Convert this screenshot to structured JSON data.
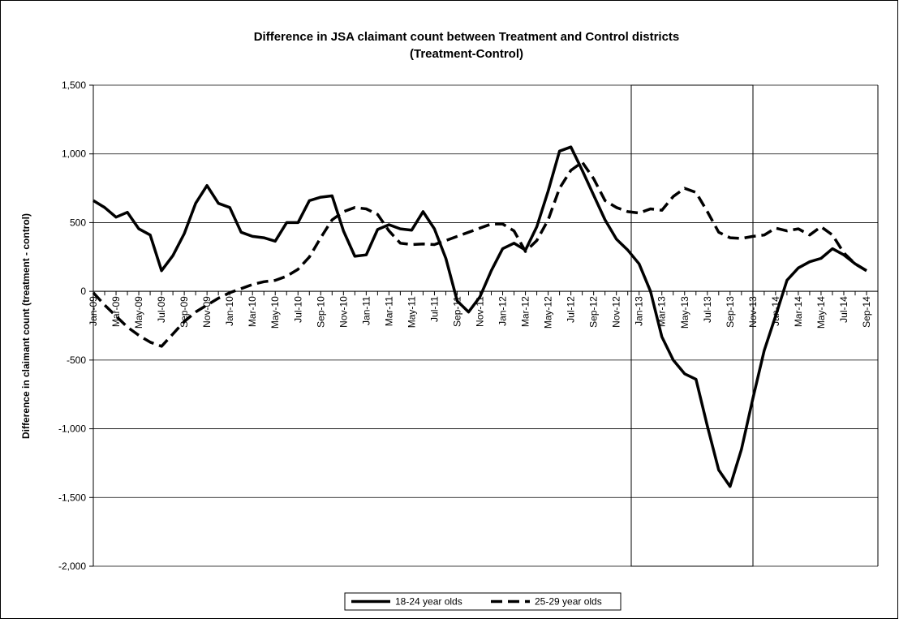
{
  "chart_data": {
    "type": "line",
    "title": "Difference in JSA claimant count between Treatment and Control districts",
    "subtitle": "(Treatment-Control)",
    "y_label": "Difference in claimant count (treatment - control)",
    "categories": [
      "Jan-09",
      null,
      "Mar-09",
      null,
      "May-09",
      null,
      "Jul-09",
      null,
      "Sep-09",
      null,
      "Nov-09",
      null,
      "Jan-10",
      null,
      "Mar-10",
      null,
      "May-10",
      null,
      "Jul-10",
      null,
      "Sep-10",
      null,
      "Nov-10",
      null,
      "Jan-11",
      null,
      "Mar-11",
      null,
      "May-11",
      null,
      "Jul-11",
      null,
      "Sep-11",
      null,
      "Nov-11",
      null,
      "Jan-12",
      null,
      "Mar-12",
      null,
      "May-12",
      null,
      "Jul-12",
      null,
      "Sep-12",
      null,
      "Nov-12",
      null,
      "Jan-13",
      null,
      "Mar-13",
      null,
      "May-13",
      null,
      "Jul-13",
      null,
      "Sep-13",
      null,
      "Nov-13",
      null,
      "Jan-14",
      null,
      "Mar-14",
      null,
      "May-14",
      null,
      "Jul-14",
      null,
      "Sep-14"
    ],
    "series": [
      {
        "name": "18-24 year olds",
        "color": "#000000",
        "dash": "solid",
        "values": [
          660,
          610,
          540,
          575,
          455,
          410,
          150,
          260,
          420,
          640,
          770,
          640,
          610,
          430,
          400,
          390,
          365,
          500,
          500,
          660,
          685,
          695,
          440,
          255,
          265,
          450,
          485,
          455,
          445,
          580,
          455,
          240,
          -70,
          -150,
          -40,
          150,
          310,
          350,
          300,
          470,
          730,
          1020,
          1050,
          880,
          700,
          520,
          380,
          300,
          200,
          0,
          -330,
          -500,
          -600,
          -640,
          -980,
          -1300,
          -1420,
          -1150,
          -780,
          -430,
          -180,
          80,
          170,
          215,
          240,
          310,
          265,
          200,
          150
        ]
      },
      {
        "name": "25-29 year olds",
        "color": "#000000",
        "dash": "dashed",
        "values": [
          -10,
          -100,
          -180,
          -260,
          -320,
          -370,
          -400,
          -310,
          -220,
          -150,
          -100,
          -50,
          -10,
          20,
          50,
          70,
          80,
          110,
          160,
          250,
          390,
          520,
          580,
          610,
          600,
          560,
          440,
          350,
          340,
          345,
          340,
          370,
          400,
          430,
          460,
          490,
          490,
          440,
          290,
          370,
          520,
          750,
          880,
          940,
          820,
          660,
          610,
          580,
          570,
          600,
          590,
          690,
          750,
          720,
          580,
          430,
          390,
          385,
          400,
          410,
          460,
          440,
          455,
          410,
          470,
          410,
          280,
          200,
          150
        ]
      }
    ],
    "ylim": [
      -2000,
      1500
    ],
    "yticks": [
      {
        "value": -2000,
        "label": "-2,000"
      },
      {
        "value": -1500,
        "label": "-1,500"
      },
      {
        "value": -1000,
        "label": "-1,000"
      },
      -500,
      0,
      500,
      {
        "value": 1000,
        "label": "1,000"
      },
      {
        "value": 1500,
        "label": "1,500"
      }
    ],
    "grid": true,
    "legend": "bottom"
  }
}
